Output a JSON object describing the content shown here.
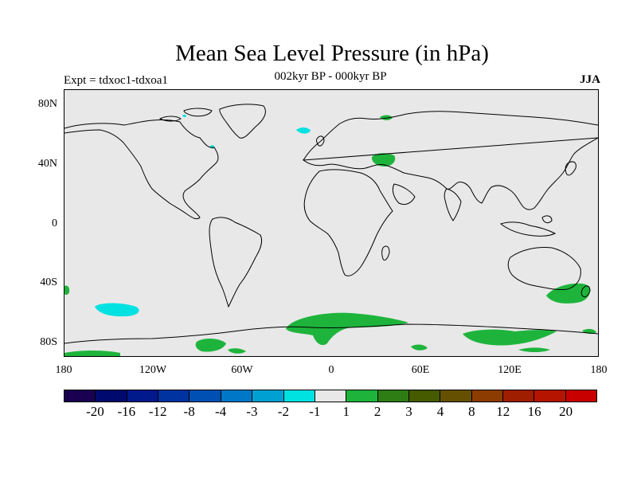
{
  "title": "Mean Sea Level Pressure (in hPa)",
  "subtitle": "002kyr BP - 000kyr BP",
  "left_label": "Expt = tdxoc1-tdxoa1",
  "right_label": "JJA",
  "lat_ticks": [
    "80N",
    "40N",
    "0",
    "40S",
    "80S"
  ],
  "lon_ticks": [
    "180",
    "120W",
    "60W",
    "0",
    "60E",
    "120E",
    "180"
  ],
  "colorbar": {
    "colors": [
      "#1a0050",
      "#000a6e",
      "#00198c",
      "#0032a0",
      "#0050b4",
      "#0078c8",
      "#00a0d2",
      "#00e1e1",
      "#e8e8e8",
      "#1eb43c",
      "#2d7d14",
      "#465a00",
      "#645000",
      "#8c3c00",
      "#a01e00",
      "#b41400",
      "#c80000"
    ],
    "labels": [
      "-20",
      "-16",
      "-12",
      "-8",
      "-4",
      "-3",
      "-2",
      "-1",
      "1",
      "2",
      "3",
      "4",
      "8",
      "12",
      "16",
      "20"
    ]
  },
  "colors": {
    "background": "#e8e8e8",
    "positive": "#1eb43c",
    "negative": "#00e1e1",
    "coast": "#000000"
  }
}
